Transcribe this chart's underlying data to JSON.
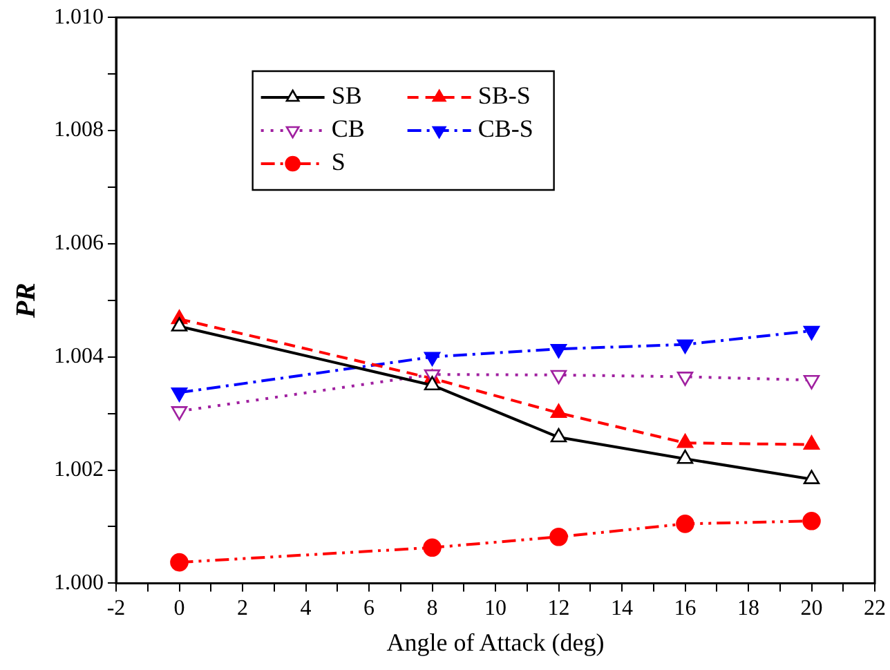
{
  "chart_data": {
    "type": "line",
    "xlabel": "Angle of Attack (deg)",
    "ylabel": "PR",
    "x": [
      0,
      8,
      12,
      16,
      20
    ],
    "xlim": [
      -2,
      22
    ],
    "xticks": [
      -2,
      {
        "value": -1,
        "label": null
      },
      0,
      {
        "value": 1,
        "label": null
      },
      2,
      {
        "value": 3,
        "label": null
      },
      4,
      {
        "value": 5,
        "label": null
      },
      6,
      {
        "value": 7,
        "label": null
      },
      8,
      {
        "value": 9,
        "label": null
      },
      10,
      {
        "value": 11,
        "label": null
      },
      12,
      {
        "value": 13,
        "label": null
      },
      14,
      {
        "value": 15,
        "label": null
      },
      16,
      {
        "value": 17,
        "label": null
      },
      18,
      {
        "value": 19,
        "label": null
      },
      20,
      {
        "value": 21,
        "label": null
      },
      22
    ],
    "ylim": [
      1.0,
      1.01
    ],
    "yticks": [
      {
        "value": 1.0,
        "label": "1.000"
      },
      {
        "value": 1.001,
        "label": null
      },
      {
        "value": 1.002,
        "label": "1.002"
      },
      {
        "value": 1.003,
        "label": null
      },
      {
        "value": 1.004,
        "label": "1.004"
      },
      {
        "value": 1.005,
        "label": null
      },
      {
        "value": 1.006,
        "label": "1.006"
      },
      {
        "value": 1.007,
        "label": null
      },
      {
        "value": 1.008,
        "label": "1.008"
      },
      {
        "value": 1.009,
        "label": null
      },
      {
        "value": 1.01,
        "label": "1.010"
      }
    ],
    "grid": false,
    "legend": "top left",
    "series": [
      {
        "name": "SB",
        "color": "#000000",
        "marker": "triangle-open",
        "line_style": "solid",
        "values": [
          1.00454,
          1.0035,
          1.00258,
          1.0022,
          1.00184
        ]
      },
      {
        "name": "SB-S",
        "color": "#ff0000",
        "marker": "triangle",
        "line_style": "dashed",
        "values": [
          1.00467,
          1.00362,
          1.00301,
          1.00248,
          1.00245
        ]
      },
      {
        "name": "CB",
        "color": "#a020a0",
        "marker": "triangle-down-open",
        "line_style": "dotted",
        "values": [
          1.00304,
          1.00369,
          1.00368,
          1.00365,
          1.00359
        ]
      },
      {
        "name": "CB-S",
        "color": "#0000ff",
        "marker": "triangle-down",
        "line_style": "dashdot",
        "values": [
          1.00337,
          1.004,
          1.00414,
          1.00422,
          1.00446
        ]
      },
      {
        "name": "S",
        "color": "#ff0000",
        "marker": "circle",
        "line_style": "dashdotdot",
        "values": [
          1.00037,
          1.00063,
          1.00082,
          1.00105,
          1.0011
        ]
      }
    ]
  }
}
